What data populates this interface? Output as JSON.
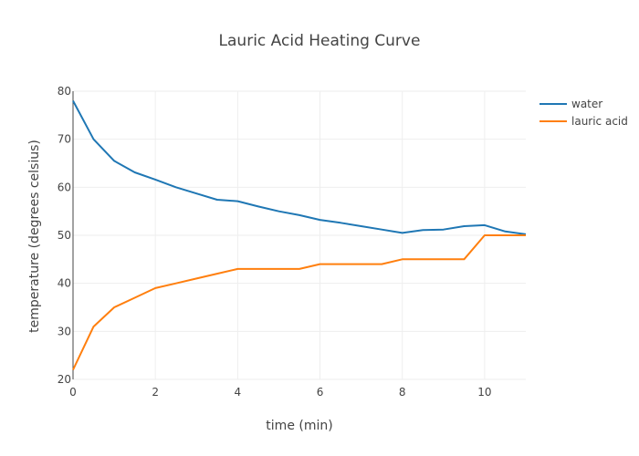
{
  "chart_data": {
    "type": "line",
    "title": "Lauric Acid Heating Curve",
    "xlabel": "time (min)",
    "ylabel": "temperature (degrees celsius)",
    "xlim": [
      0,
      11
    ],
    "ylim": [
      20,
      80
    ],
    "x_ticks": [
      0,
      2,
      4,
      6,
      8,
      10
    ],
    "y_ticks": [
      20,
      30,
      40,
      50,
      60,
      70,
      80
    ],
    "grid": true,
    "legend_position": "top-right",
    "series": [
      {
        "name": "water",
        "color": "#1f77b4",
        "x": [
          0,
          0.5,
          1,
          1.5,
          2,
          2.5,
          3,
          3.5,
          4,
          4.5,
          5,
          5.5,
          6,
          6.5,
          7,
          7.5,
          8,
          8.5,
          9,
          9.5,
          10,
          10.5,
          11
        ],
        "y": [
          78,
          70,
          65.5,
          63.1,
          61.6,
          60,
          58.7,
          57.4,
          57.1,
          56,
          55,
          54.2,
          53.2,
          52.6,
          51.9,
          51.2,
          50.5,
          51.1,
          51.2,
          51.9,
          52.1,
          50.8,
          50.2
        ]
      },
      {
        "name": "lauric acid",
        "color": "#ff7f0e",
        "x": [
          0,
          0.5,
          1,
          1.5,
          2,
          2.5,
          3,
          3.5,
          4,
          4.5,
          5,
          5.5,
          6,
          6.5,
          7,
          7.5,
          8,
          8.5,
          9,
          9.5,
          10,
          10.5,
          11
        ],
        "y": [
          22,
          31,
          35,
          37,
          39,
          40,
          41,
          42,
          43,
          43,
          43,
          43,
          44,
          44,
          44,
          44,
          45,
          45,
          45,
          45,
          50,
          50,
          50
        ]
      }
    ]
  }
}
